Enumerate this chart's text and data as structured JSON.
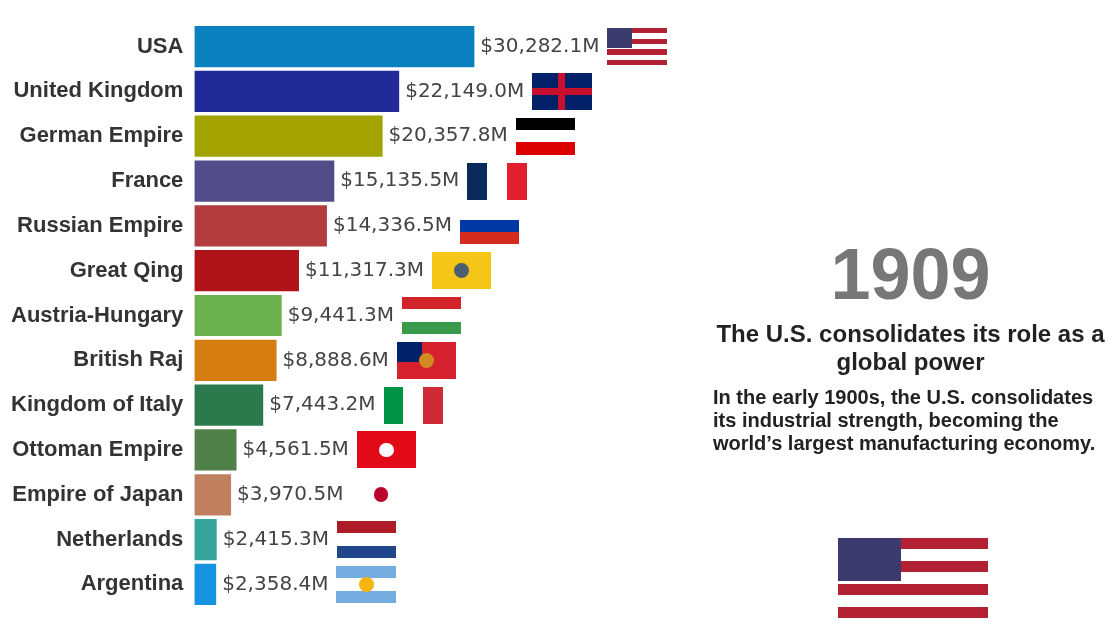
{
  "chart_data": {
    "type": "bar",
    "orientation": "horizontal",
    "title": "1909",
    "subtitle": "The U.S. consolidates its role as a global power",
    "annotations": [
      "In the early 1900s, the U.S. consolidates its industrial strength, becoming the world’s largest manufacturing economy."
    ],
    "categories": [
      "USA",
      "United Kingdom",
      "German Empire",
      "France",
      "Russian Empire",
      "Great Qing",
      "Austria-Hungary",
      "British Raj",
      "Kingdom of Italy",
      "Ottoman Empire",
      "Empire of Japan",
      "Netherlands",
      "Argentina"
    ],
    "values": [
      30282.1,
      22149.0,
      20357.8,
      15135.5,
      14336.5,
      11317.3,
      9441.3,
      8888.6,
      7443.2,
      4561.5,
      3970.5,
      2415.3,
      2358.4
    ],
    "value_labels": [
      "$30,282.1M",
      "$22,149.0M",
      "$20,357.8M",
      "$15,135.5M",
      "$14,336.5M",
      "$11,317.3M",
      "$9,441.3M",
      "$8,888.6M",
      "$7,443.2M",
      "$4,561.5M",
      "$3,970.5M",
      "$2,415.3M",
      "$2,358.4M"
    ],
    "colors": [
      "#0a80bf",
      "#212a96",
      "#a3a300",
      "#534c8a",
      "#b23c3e",
      "#b01318",
      "#6ab04c",
      "#d67d12",
      "#2b7a4e",
      "#4e8048",
      "#c08060",
      "#35a59a",
      "#1592e0"
    ]
  }
}
